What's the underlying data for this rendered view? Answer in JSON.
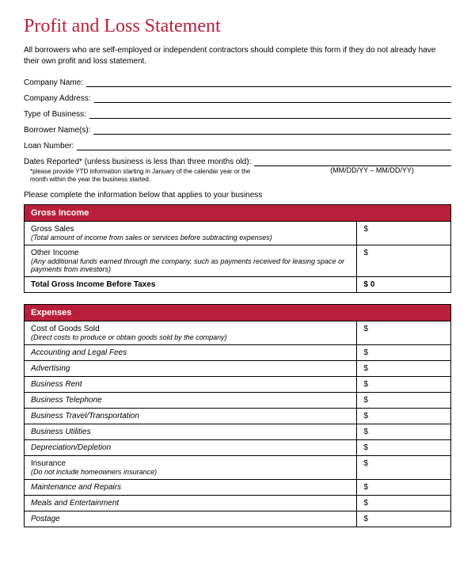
{
  "title": "Profit and Loss Statement",
  "intro": "All borrowers who are self-employed or independent contractors should complete this form if they do not already have their own profit and loss statement.",
  "fields": {
    "company_name": "Company Name:",
    "company_address": "Company Address:",
    "type_of_business": "Type of Business:",
    "borrower_names": "Borrower Name(s):",
    "loan_number": "Loan Number:",
    "dates_reported": "Dates Reported* (unless business is less than three months old):",
    "dates_hint": "(MM/DD/YY – MM/DD/YY)",
    "footnote": "*please provide YTD information starting in January of the calendar year or the month within the year the business started."
  },
  "instruction": "Please complete the information below that applies to your business",
  "gross_income": {
    "header": "Gross Income",
    "rows": [
      {
        "label": "Gross Sales",
        "desc": "(Total amount of income from sales or services before subtracting expenses)",
        "value": "$",
        "italic": false
      },
      {
        "label": "Other Income",
        "desc": "(Any additional funds earned through the company, such as payments received for leasing space or payments from investors)",
        "value": "$",
        "italic": false
      }
    ],
    "total_label": "Total Gross Income Before Taxes",
    "total_value": "$ 0"
  },
  "expenses": {
    "header": "Expenses",
    "rows": [
      {
        "label": "Cost of Goods Sold",
        "desc": "(Direct costs to produce or obtain goods sold by the company)",
        "value": "$",
        "italic": false
      },
      {
        "label": "Accounting and Legal Fees",
        "desc": "",
        "value": "$",
        "italic": true
      },
      {
        "label": "Advertising",
        "desc": "",
        "value": "$",
        "italic": true
      },
      {
        "label": "Business Rent",
        "desc": "",
        "value": "$",
        "italic": true
      },
      {
        "label": "Business Telephone",
        "desc": "",
        "value": "$",
        "italic": true
      },
      {
        "label": "Business Travel/Transportation",
        "desc": "",
        "value": "$",
        "italic": true
      },
      {
        "label": "Business Utilities",
        "desc": "",
        "value": "$",
        "italic": true
      },
      {
        "label": "Depreciation/Depletion",
        "desc": "",
        "value": "$",
        "italic": true
      },
      {
        "label": "Insurance",
        "desc": "(Do not include homeowners insurance)",
        "value": "$",
        "italic": false
      },
      {
        "label": "Maintenance and Repairs",
        "desc": "",
        "value": "$",
        "italic": true
      },
      {
        "label": "Meals and Entertainment",
        "desc": "",
        "value": "$",
        "italic": true
      },
      {
        "label": "Postage",
        "desc": "",
        "value": "$",
        "italic": true
      }
    ]
  },
  "colors": {
    "accent": "#b91f3a",
    "text": "#000000",
    "background": "#ffffff",
    "border": "#000000"
  }
}
